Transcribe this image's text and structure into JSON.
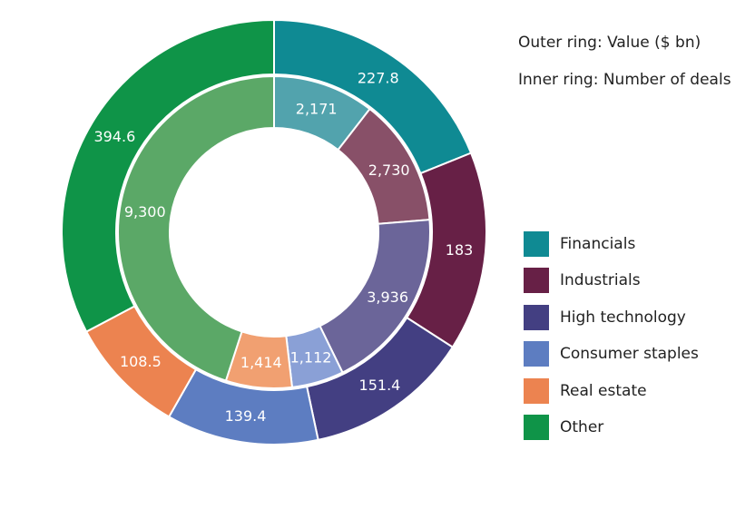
{
  "chart_data": {
    "type": "pie",
    "subtype": "nested-donut",
    "notes": {
      "outer": "Outer ring: Value ($ bn)",
      "inner": "Inner ring: Number of deals"
    },
    "categories": [
      "Financials",
      "Industrials",
      "High technology",
      "Consumer staples",
      "Real estate",
      "Other"
    ],
    "series": [
      {
        "name": "Value ($ bn)",
        "ring": "outer",
        "values": [
          227.8,
          183,
          151.4,
          139.4,
          108.5,
          394.6
        ],
        "labels": [
          "227.8",
          "183",
          "151.4",
          "139.4",
          "108.5",
          "394.6"
        ]
      },
      {
        "name": "Number of deals",
        "ring": "inner",
        "values": [
          2171,
          2730,
          3936,
          1112,
          1414,
          9300
        ],
        "labels": [
          "2,171",
          "2,730",
          "3,936",
          "1,112",
          "1,414",
          "9,300"
        ]
      }
    ],
    "colors": {
      "outer": [
        "#0f8a93",
        "#672046",
        "#433f82",
        "#5d7dc1",
        "#ec8350",
        "#0f9448"
      ],
      "inner": [
        "#52a3ad",
        "#885068",
        "#6b6599",
        "#8aa0d6",
        "#f1a071",
        "#5ba867"
      ]
    },
    "legend_position": "right",
    "start_angle": "12 o'clock",
    "direction": "clockwise"
  }
}
